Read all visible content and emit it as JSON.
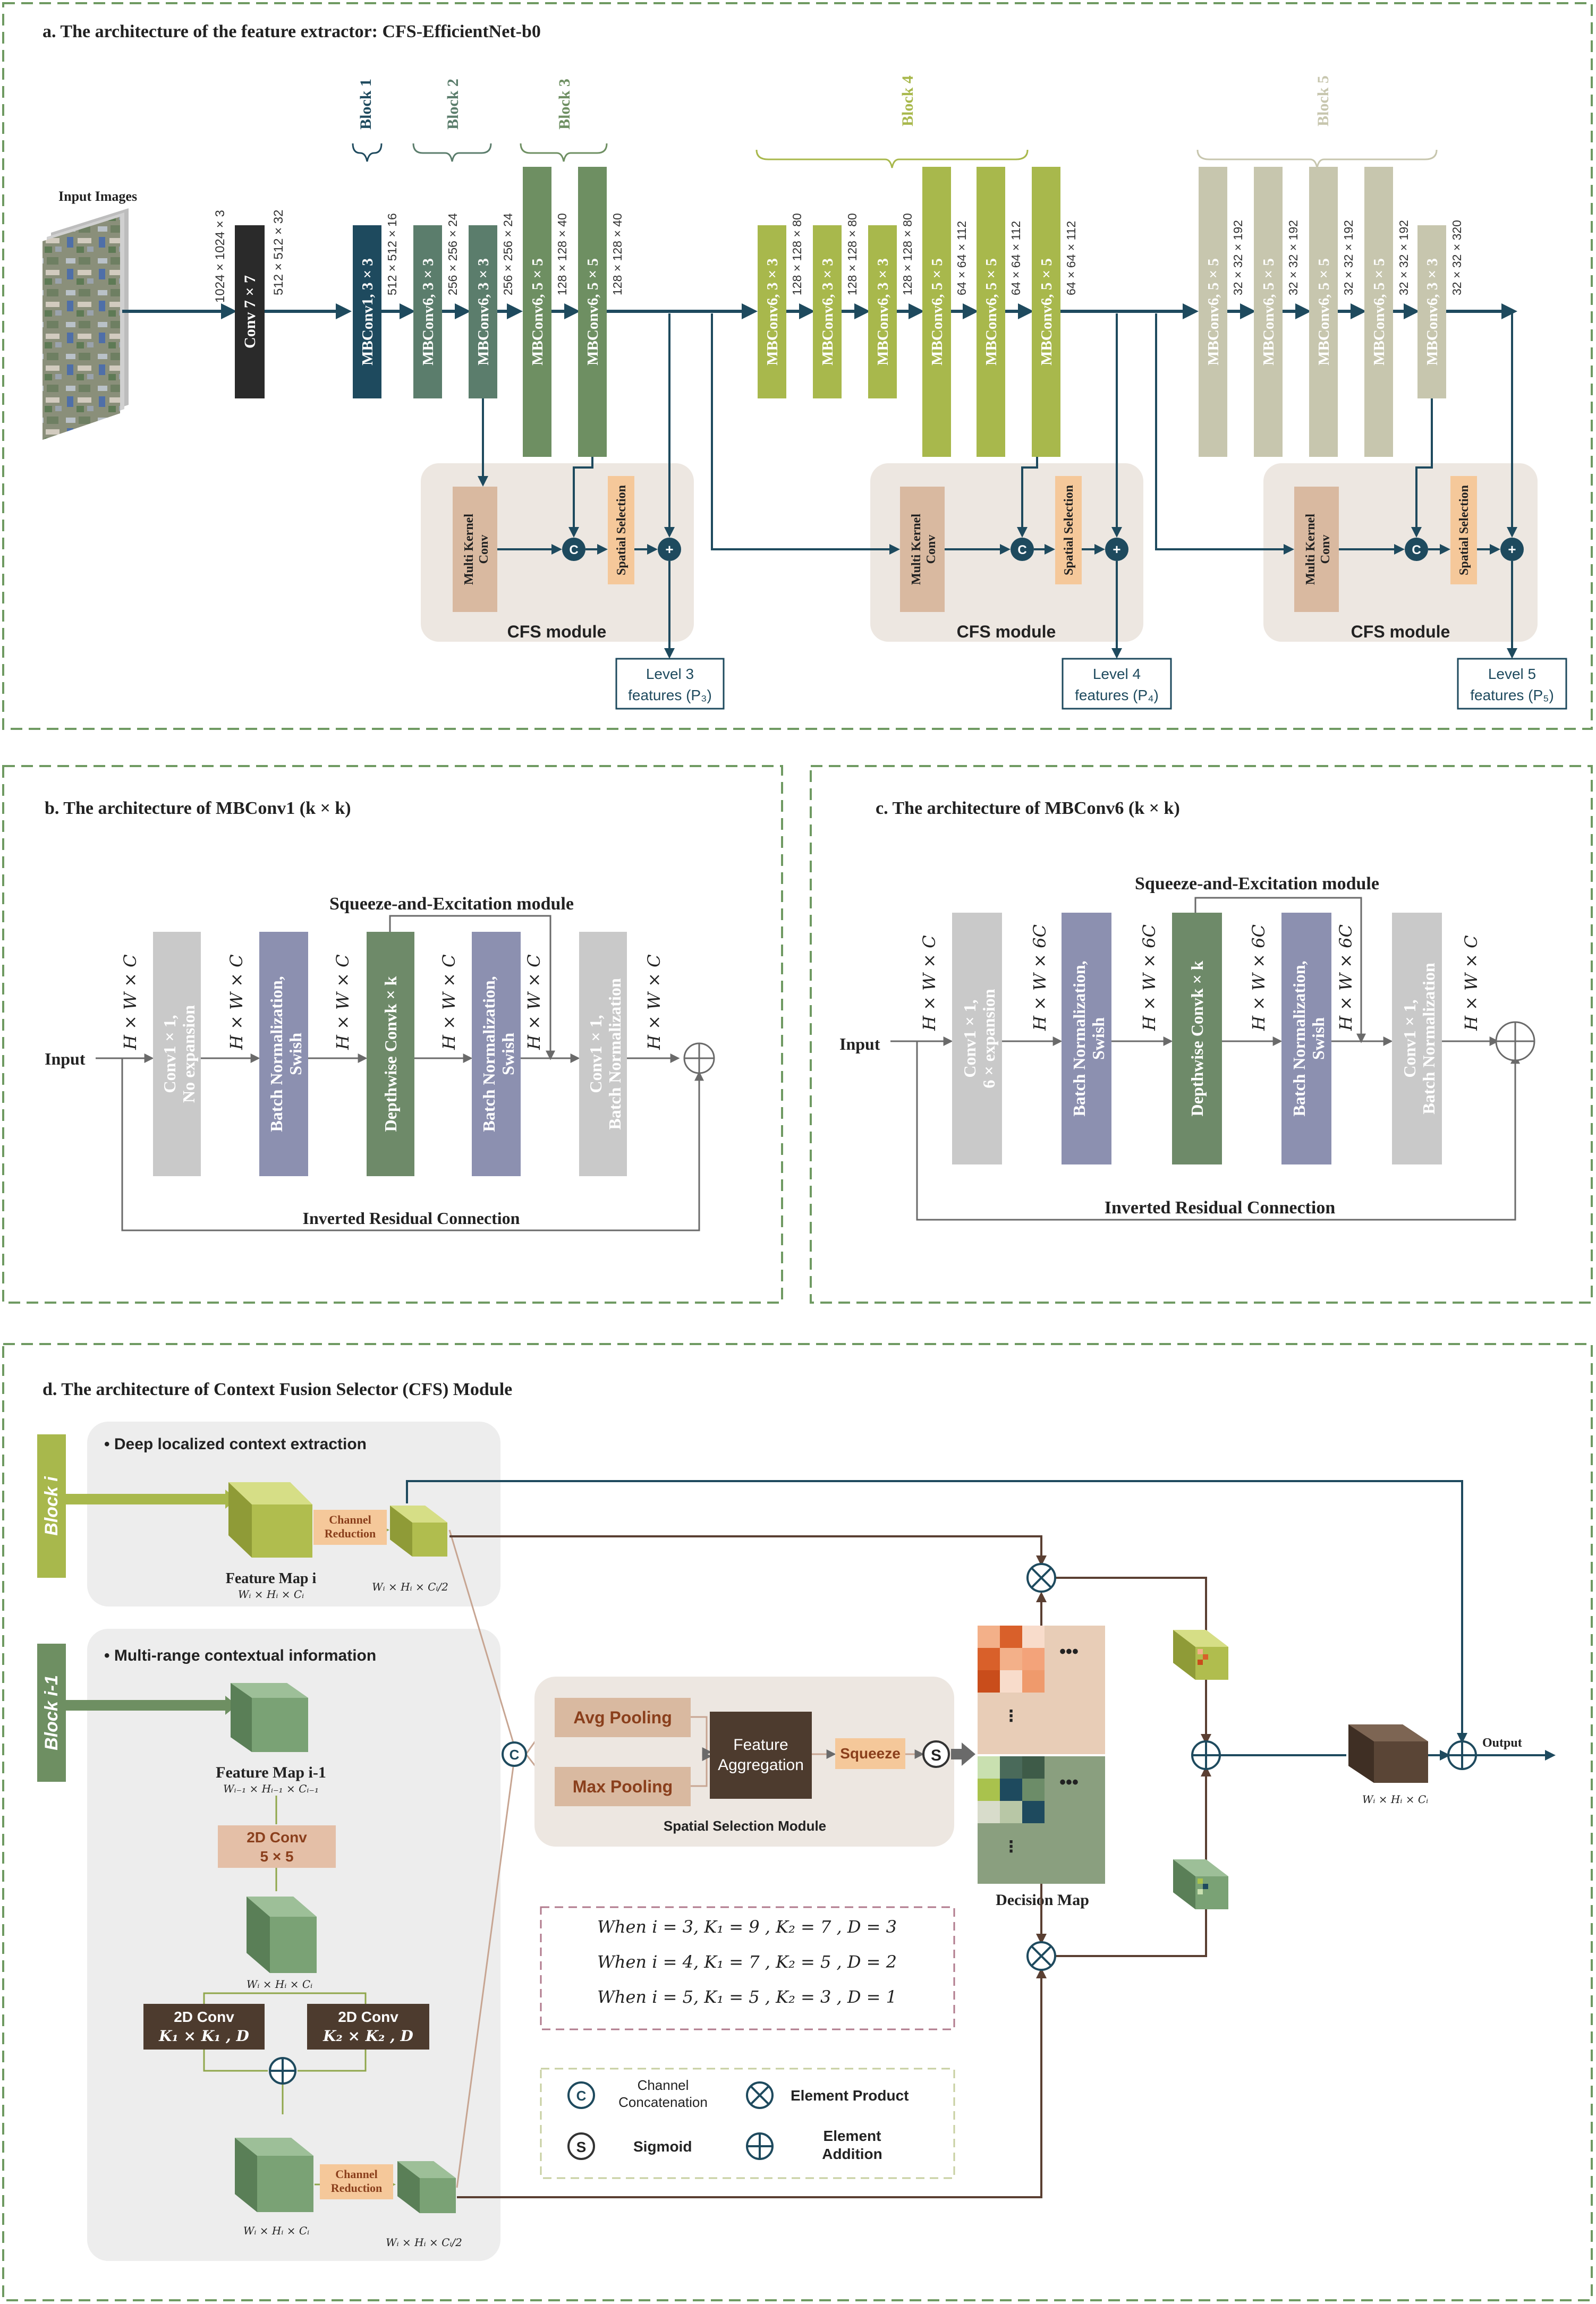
{
  "colors": {
    "frame": "#6f9a62",
    "navy": "#1e4a5e",
    "conv_black": "#2a2a2a",
    "block1": "#1e4a5e",
    "block2": "#5b7d6c",
    "block3": "#6e8f62",
    "block4": "#a8b84c",
    "block5": "#c7c6ae",
    "cfs_bg": "#ede7e1",
    "multikernel": "#d9b9a0",
    "spatial": "#f5c89a",
    "gray_conv": "#c9c9c9",
    "bn_purple": "#8c90b0",
    "depthwise": "#6e8a69",
    "brown_arrow": "#5a3f32",
    "dark_brown": "#4d3b2e"
  },
  "panel_a": {
    "title": "a. The architecture of the feature extractor: CFS-EfficientNet-b0",
    "input_label": "Input Images",
    "block_labels": [
      "Block 1",
      "Block 2",
      "Block 3",
      "Block 4",
      "Block 5"
    ],
    "layers": [
      {
        "name": "Conv 7 × 7",
        "dim": "512 × 512 × 32"
      },
      {
        "name": "MBConv1, 3 × 3",
        "dim": "512 × 512 × 16"
      },
      {
        "name": "MBConv6, 3 × 3",
        "dim": "256 × 256 × 24"
      },
      {
        "name": "MBConv6, 3 × 3",
        "dim": "256 × 256 × 24"
      },
      {
        "name": "MBConv6, 5 × 5",
        "dim": "128 × 128 × 40"
      },
      {
        "name": "MBConv6, 5 × 5",
        "dim": "128 × 128 × 40"
      },
      {
        "name": "MBConv6, 3 × 3",
        "dim": "128 × 128 × 80"
      },
      {
        "name": "MBConv6, 3 × 3",
        "dim": "128 × 128 × 80"
      },
      {
        "name": "MBConv6, 3 × 3",
        "dim": "128 × 128 × 80"
      },
      {
        "name": "MBConv6, 5 × 5",
        "dim": "64 × 64 × 112"
      },
      {
        "name": "MBConv6, 5 × 5",
        "dim": "64 × 64 × 112"
      },
      {
        "name": "MBConv6, 5 × 5",
        "dim": "64 × 64 × 112"
      },
      {
        "name": "MBConv6, 5 × 5",
        "dim": "32 × 32 × 192"
      },
      {
        "name": "MBConv6, 5 × 5",
        "dim": "32 × 32 × 192"
      },
      {
        "name": "MBConv6, 5 × 5",
        "dim": "32 × 32 × 192"
      },
      {
        "name": "MBConv6, 5 × 5",
        "dim": "32 × 32 × 192"
      },
      {
        "name": "MBConv6, 3 × 3",
        "dim": "32 × 32 × 320"
      }
    ],
    "input_dim": "1024 × 1024 × 3",
    "cfs_module_label": "CFS module",
    "multi_kernel_label": [
      "Multi Kernel",
      "Conv"
    ],
    "spatial_selection_label": "Spatial Selection",
    "concat_symbol": "C",
    "add_symbol": "+",
    "outputs": [
      {
        "line1": "Level 3",
        "line2": "features (P₃)"
      },
      {
        "line1": "Level 4",
        "line2": "features (P₄)"
      },
      {
        "line1": "Level 5",
        "line2": "features (P₅)"
      }
    ]
  },
  "panel_b": {
    "title": "b. The architecture of MBConv1 (k × k)",
    "input_label": "Input",
    "se_label": "Squeeze-and-Excitation module",
    "residual_label": "Inverted Residual Connection",
    "dims": [
      "H × W × C",
      "H × W × C",
      "H × W × C",
      "H × W × C",
      "H × W × C",
      "H × W × C"
    ],
    "boxes": [
      {
        "line1": "Conv1 × 1,",
        "line2": "No expansion"
      },
      {
        "line1": "Batch Normalization,",
        "line2": "Swish"
      },
      {
        "line1": "Depthwise Convk × k",
        "line2": ""
      },
      {
        "line1": "Batch Normalization,",
        "line2": "Swish"
      },
      {
        "line1": "Conv1 × 1,",
        "line2": "Batch Normalization"
      }
    ]
  },
  "panel_c": {
    "title": "c. The architecture of MBConv6 (k × k)",
    "input_label": "Input",
    "se_label": "Squeeze-and-Excitation module",
    "residual_label": "Inverted Residual Connection",
    "dims": [
      "H × W × C",
      "H × W × 6C",
      "H × W × 6C",
      "H × W × 6C",
      "H × W × 6C",
      "H × W × C"
    ],
    "boxes": [
      {
        "line1": "Conv1 × 1,",
        "line2": "6 × expansion"
      },
      {
        "line1": "Batch Normalization,",
        "line2": "Swish"
      },
      {
        "line1": "Depthwise Convk × k",
        "line2": ""
      },
      {
        "line1": "Batch Normalization,",
        "line2": "Swish"
      },
      {
        "line1": "Conv1 × 1,",
        "line2": "Batch Normalization"
      }
    ]
  },
  "panel_d": {
    "title": "d. The architecture of Context Fusion Selector (CFS) Module",
    "block_i": "Block i",
    "block_i_1": "Block i-1",
    "deep_ctx": "Deep localized context extraction",
    "multi_range": "Multi-range contextual information",
    "channel_reduction": [
      "Channel",
      "Reduction"
    ],
    "feature_map_i": "Feature Map i",
    "feature_map_i_dim": "Wᵢ × Hᵢ × Cᵢ",
    "reduced_dim": "Wᵢ × Hᵢ × Cᵢ/2",
    "feature_map_i_1": "Feature Map i-1",
    "feature_map_i_1_dim": "Wᵢ₋₁ × Hᵢ₋₁ × Cᵢ₋₁",
    "conv2d_5x5": [
      "2D Conv",
      "5 × 5"
    ],
    "mid_dim": "Wᵢ × Hᵢ × Cᵢ",
    "conv_k1": [
      "2D Conv",
      "K₁ × K₁ , D"
    ],
    "conv_k2": [
      "2D Conv",
      "K₂ × K₂ , D"
    ],
    "bottom_dim": "Wᵢ × Hᵢ × Cᵢ",
    "avg_pooling": "Avg Pooling",
    "max_pooling": "Max Pooling",
    "feature_aggregation": [
      "Feature",
      "Aggregation"
    ],
    "squeeze": "Squeeze",
    "spatial_selection_module": "Spatial Selection Module",
    "decision_map": "Decision Map",
    "output_label": "Output",
    "output_dim": "Wᵢ × Hᵢ × Cᵢ",
    "ellipsis": "•••",
    "conditions": [
      "When i = 3, K₁ = 9 , K₂ = 7 , D = 3",
      "When i = 4, K₁ = 7 , K₂ = 5 , D = 2",
      "When i = 5, K₁ = 5 , K₂ = 3 , D = 1"
    ],
    "legend": [
      {
        "symbol": "C",
        "label": [
          "Channel",
          "Concatenation"
        ]
      },
      {
        "symbol": "×",
        "label": [
          "Element Product"
        ]
      },
      {
        "symbol": "S",
        "label": [
          "Sigmoid"
        ]
      },
      {
        "symbol": "+",
        "label": [
          "Element",
          "Addition"
        ]
      }
    ]
  }
}
